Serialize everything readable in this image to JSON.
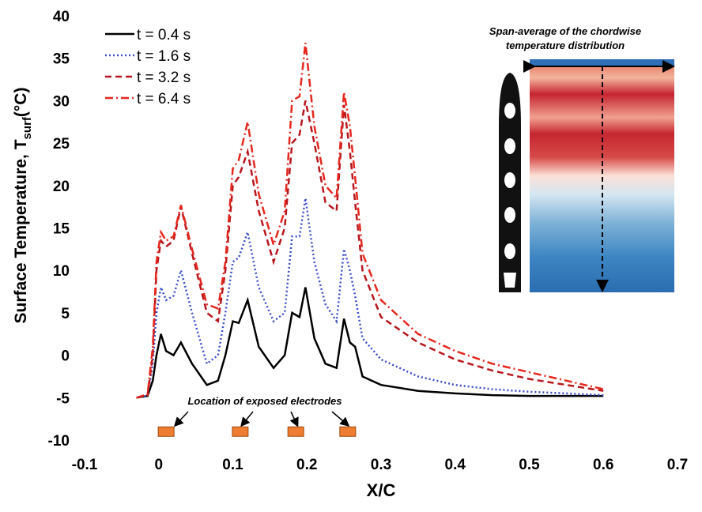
{
  "chart_data": {
    "type": "line",
    "ylabel": "Surface Temperature, T",
    "ylabel_sub": "surf",
    "ylabel_unit": "(°C)",
    "xlabel": "X/C",
    "x": [
      -0.03,
      -0.015,
      -0.008,
      -0.003,
      0.003,
      0.01,
      0.02,
      0.03,
      0.045,
      0.065,
      0.08,
      0.09,
      0.1,
      0.108,
      0.12,
      0.135,
      0.155,
      0.17,
      0.18,
      0.19,
      0.198,
      0.21,
      0.225,
      0.24,
      0.25,
      0.258,
      0.265,
      0.275,
      0.3,
      0.35,
      0.4,
      0.45,
      0.5,
      0.55,
      0.6
    ],
    "series": [
      {
        "name": "t = 0.4 s",
        "color": "#000000",
        "dash": "solid",
        "values": [
          -5,
          -4.8,
          -3,
          0,
          2.5,
          0.5,
          0,
          1.5,
          -1,
          -3.5,
          -3,
          0,
          4,
          3.8,
          6.5,
          1,
          -1.5,
          0,
          5,
          4.5,
          8,
          2,
          -1,
          -1.5,
          4.3,
          1.5,
          1,
          -2.5,
          -3.5,
          -4.2,
          -4.5,
          -4.7,
          -4.8,
          -4.8,
          -4.8
        ]
      },
      {
        "name": "t = 1.6 s",
        "color": "#3a4fc8",
        "dash": "dotted",
        "values": [
          -5,
          -4.8,
          -1,
          5,
          8,
          6.5,
          7,
          10,
          5,
          -1,
          0,
          5,
          11,
          11.5,
          14.5,
          8,
          4,
          5,
          14,
          14,
          18.5,
          11,
          6,
          4,
          12.5,
          10,
          7,
          2,
          -0.5,
          -2.5,
          -3.5,
          -4,
          -4.3,
          -4.5,
          -4.7
        ]
      },
      {
        "name": "t = 3.2 s",
        "color": "#b8161c",
        "dash": "dashed",
        "values": [
          -5,
          -4.7,
          0,
          10,
          13.5,
          12.8,
          13.5,
          17.5,
          12,
          5,
          4,
          10,
          20,
          21,
          24,
          17,
          11,
          15,
          25,
          26,
          30,
          25,
          18,
          17,
          29.5,
          24,
          18,
          10,
          4.5,
          1.5,
          -0.5,
          -1.8,
          -2.8,
          -3.5,
          -4.2
        ]
      },
      {
        "name": "t = 6.4 s",
        "color": "#e5271d",
        "dash": "dashdot",
        "values": [
          -5,
          -4.6,
          1,
          11,
          14.5,
          13.5,
          14,
          17.7,
          12.5,
          6,
          5.5,
          11,
          22,
          23,
          27.5,
          19,
          13,
          17,
          30,
          30.5,
          36.8,
          27,
          20,
          18.5,
          31,
          27,
          21,
          12,
          6.5,
          2.5,
          0.5,
          -1,
          -2,
          -3,
          -4
        ]
      }
    ],
    "xlim": [
      -0.1,
      0.7
    ],
    "xticks": [
      -0.1,
      0,
      0.1,
      0.2,
      0.3,
      0.4,
      0.5,
      0.6,
      0.7
    ],
    "ylim": [
      -10,
      40
    ],
    "yticks": [
      -10,
      -5,
      0,
      5,
      10,
      15,
      20,
      25,
      30,
      35,
      40
    ],
    "electrode_x": [
      0.01,
      0.11,
      0.185,
      0.255
    ],
    "electrode_color": "#ee7d31",
    "electrode_annotation": "Location of exposed electrodes",
    "inset_title": [
      "Span-average of the chordwise",
      "temperature distribution"
    ]
  }
}
